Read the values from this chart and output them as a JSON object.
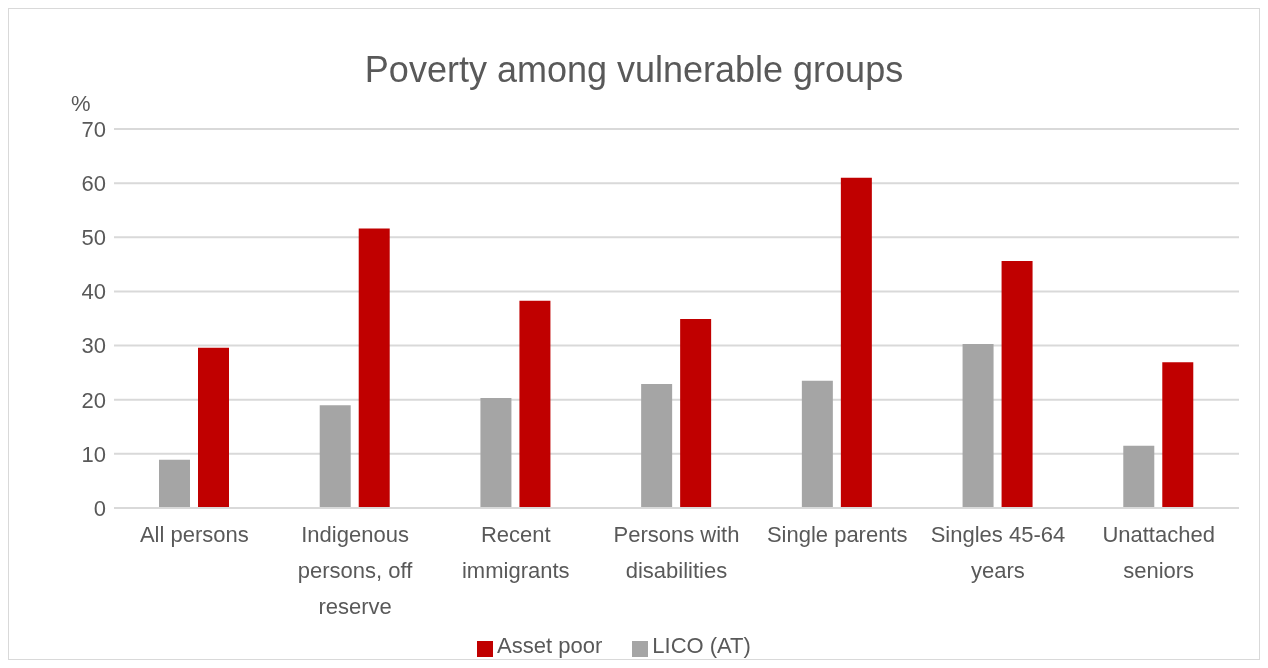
{
  "chart_data": {
    "type": "bar",
    "title": "Poverty among vulnerable groups",
    "ylabel": "%",
    "categories": [
      "All persons",
      "Indigenous persons, off reserve",
      "Recent immigrants",
      "Persons with disabilities",
      "Single parents",
      "Singles 45-64 years",
      "Unattached seniors"
    ],
    "series": [
      {
        "name": "LICO (AT)",
        "color": "#a5a5a5",
        "values": [
          8.9,
          19,
          20.3,
          22.9,
          23.5,
          30.3,
          11.5
        ]
      },
      {
        "name": "Asset poor",
        "color": "#c00000",
        "values": [
          29.6,
          51.6,
          38.3,
          34.9,
          61,
          45.6,
          26.9
        ]
      }
    ],
    "ylim": [
      0,
      70
    ],
    "yticks": [
      0,
      10,
      20,
      30,
      40,
      50,
      60,
      70
    ],
    "grid": "y",
    "legend": "bottom"
  }
}
